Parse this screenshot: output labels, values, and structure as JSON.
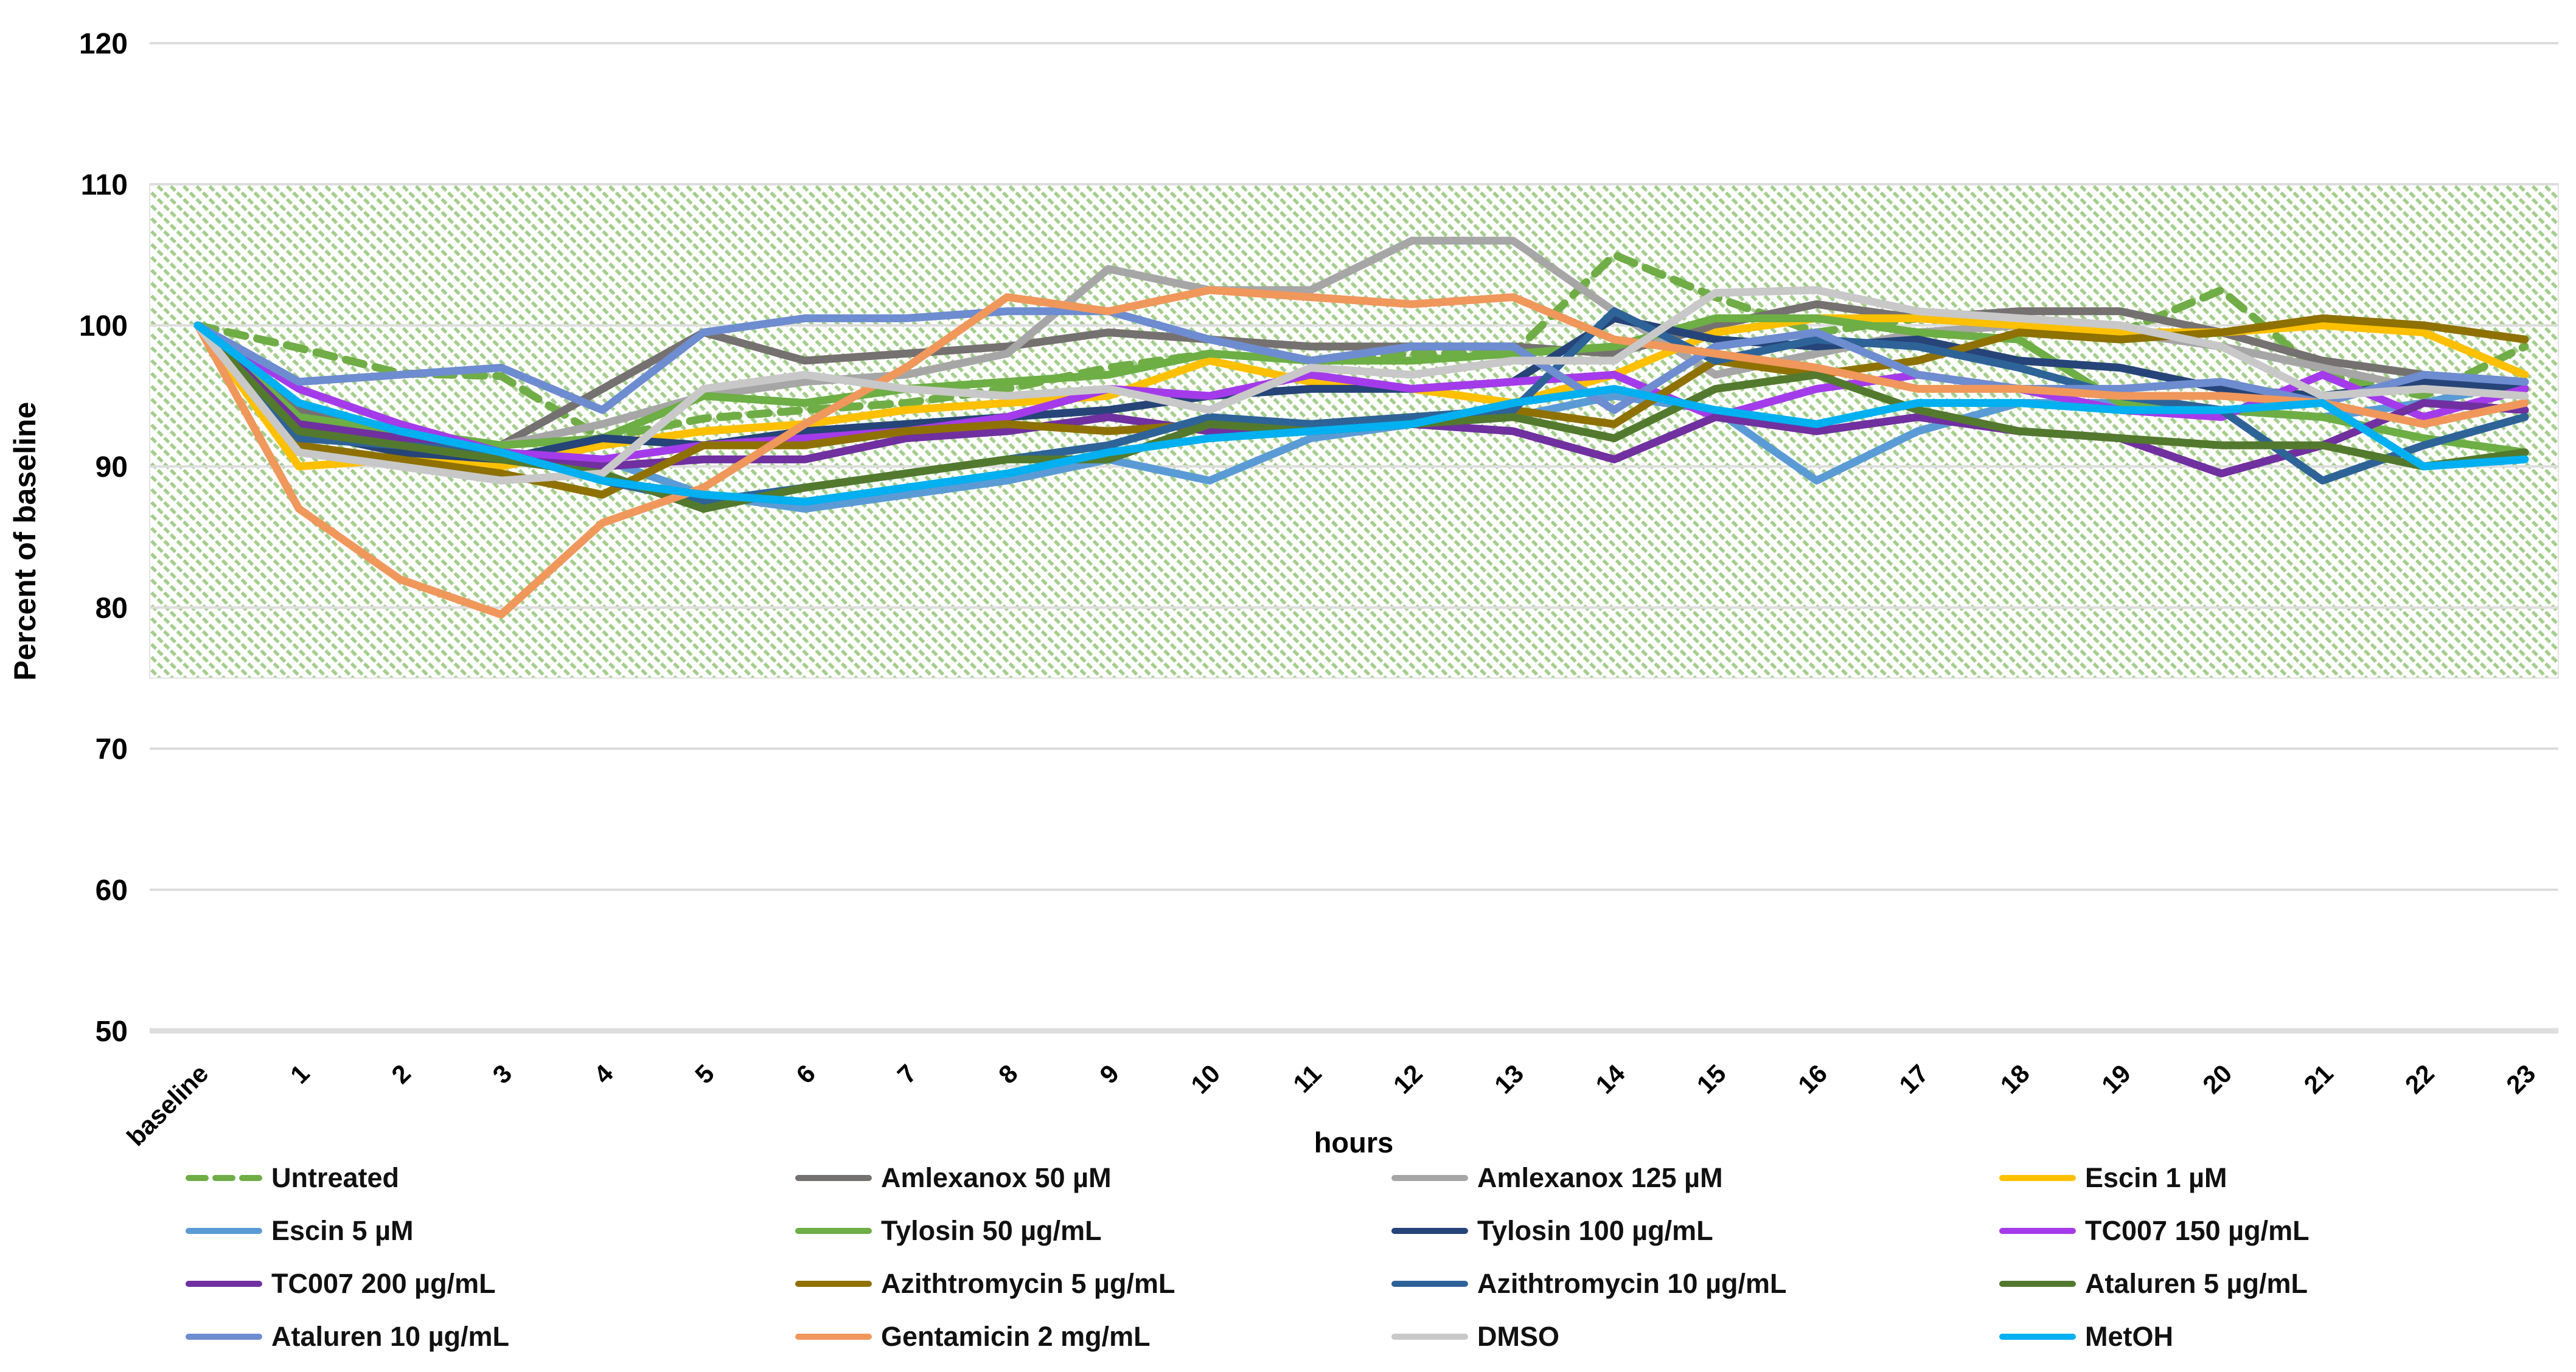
{
  "chart_data": {
    "type": "line",
    "title": "",
    "xlabel": "hours",
    "ylabel": "Percent of baseline",
    "ylim": [
      50,
      120
    ],
    "yticks": [
      120,
      110,
      100,
      90,
      80,
      70,
      60,
      50
    ],
    "grid": "horizontal",
    "legend_position": "bottom",
    "band": {
      "from": 75,
      "to": 110,
      "fill": "green-hatch",
      "hatch_color": "#94C478"
    },
    "categories": [
      "baseline",
      "1",
      "2",
      "3",
      "4",
      "5",
      "6",
      "7",
      "8",
      "9",
      "10",
      "11",
      "12",
      "13",
      "14",
      "15",
      "16",
      "17",
      "18",
      "19",
      "20",
      "21",
      "22",
      "23"
    ],
    "series": [
      {
        "name": "Untreated",
        "color": "#70AD47",
        "dash": true,
        "values": [
          100,
          98.4,
          96.6,
          96.4,
          92,
          93.4,
          94,
          94.5,
          95.5,
          97,
          98,
          97.5,
          98,
          98,
          105,
          102,
          99.5,
          100.5,
          100,
          99.5,
          102.5,
          96.5,
          95,
          98.5
        ]
      },
      {
        "name": "Amlexanox 50 µM",
        "color": "#767171",
        "dash": false,
        "values": [
          100,
          94,
          92,
          91.5,
          95.5,
          99.5,
          97.5,
          98,
          98.5,
          99.5,
          99,
          98.5,
          98.5,
          98.5,
          98,
          100,
          101.5,
          100.5,
          101,
          101,
          99.5,
          97.5,
          96.5,
          96
        ]
      },
      {
        "name": "Amlexanox 125 µM",
        "color": "#A6A6A6",
        "dash": false,
        "values": [
          100,
          92.5,
          91,
          91.5,
          93,
          95,
          96,
          96.5,
          98,
          104,
          102.5,
          102.5,
          106,
          106,
          101,
          96.5,
          98,
          99.5,
          100,
          99.5,
          98.5,
          97,
          95.5,
          95.5
        ]
      },
      {
        "name": "Escin 1 µM",
        "color": "#FFC000",
        "dash": false,
        "values": [
          100,
          90,
          90.5,
          90,
          91.5,
          92.5,
          93,
          94,
          94.5,
          95,
          97.5,
          96,
          95.5,
          94.5,
          96.5,
          99.5,
          100.5,
          100.5,
          100,
          99.5,
          99.5,
          100,
          99.5,
          96.5
        ]
      },
      {
        "name": "Escin 5 µM",
        "color": "#5B9BD5",
        "dash": false,
        "values": [
          100,
          93.5,
          92,
          91,
          90.5,
          88,
          87,
          88,
          89,
          90.5,
          89,
          92,
          93,
          93.5,
          95,
          94,
          89,
          92.5,
          94.5,
          94.5,
          94,
          93.5,
          94.5,
          96
        ]
      },
      {
        "name": "Tylosin 50 µg/mL",
        "color": "#6DAE45",
        "dash": false,
        "values": [
          100,
          93.5,
          92.5,
          91.5,
          92,
          95,
          94.5,
          95.5,
          96,
          96.5,
          98,
          97.5,
          97.5,
          98,
          98.5,
          100.5,
          100.5,
          99.5,
          99,
          94.5,
          94,
          93.5,
          92,
          91
        ]
      },
      {
        "name": "Tylosin 100 µg/mL",
        "color": "#264478",
        "dash": false,
        "values": [
          100,
          92.5,
          91,
          90.5,
          92,
          91.5,
          92.5,
          93,
          93.5,
          94,
          95,
          95.5,
          95.5,
          96,
          100.5,
          99,
          98.5,
          99,
          97.5,
          97,
          95.5,
          95,
          96,
          95.5
        ]
      },
      {
        "name": "TC007 150 µg/mL",
        "color": "#A43BEA",
        "dash": false,
        "values": [
          100,
          95.5,
          93,
          91,
          90.5,
          91.5,
          92,
          92.5,
          93.5,
          95.5,
          95,
          96.5,
          95.5,
          96,
          96.5,
          93.5,
          95.5,
          96.5,
          95.5,
          94,
          93.5,
          96.5,
          93.5,
          95.5
        ]
      },
      {
        "name": "TC007 200 µg/mL",
        "color": "#7030A0",
        "dash": false,
        "values": [
          100,
          93,
          92,
          90.5,
          90,
          90.5,
          90.5,
          92,
          92.5,
          93.5,
          92.5,
          93,
          93,
          92.5,
          90.5,
          93.5,
          92.5,
          93.5,
          92.5,
          92,
          89.5,
          91.5,
          94.5,
          94
        ]
      },
      {
        "name": "Azithtromycin 5 µg/mL",
        "color": "#8E7100",
        "dash": false,
        "values": [
          100,
          91.5,
          90.5,
          89.5,
          88,
          91.5,
          91.5,
          92.5,
          93,
          92.5,
          93,
          93,
          93.5,
          94,
          93,
          97.5,
          96.5,
          97.5,
          99.5,
          99,
          99.5,
          100.5,
          100,
          99
        ]
      },
      {
        "name": "Azithtromycin 10 µg/mL",
        "color": "#2E6398",
        "dash": false,
        "values": [
          100,
          92,
          91.5,
          91,
          89,
          87.5,
          88.5,
          89.5,
          90.5,
          91.5,
          93.5,
          93,
          93.5,
          94,
          101,
          97.5,
          99,
          98.5,
          97,
          95,
          94,
          89,
          91.5,
          93.5
        ]
      },
      {
        "name": "Ataluren 5 µg/mL",
        "color": "#53792E",
        "dash": false,
        "values": [
          100,
          92.5,
          91.5,
          90.5,
          89.5,
          87,
          88.5,
          89.5,
          90.5,
          90.5,
          93,
          92.5,
          93,
          93.5,
          92,
          95.5,
          96.5,
          94,
          92.5,
          92,
          91.5,
          91.5,
          90,
          91
        ]
      },
      {
        "name": "Ataluren 10 µg/mL",
        "color": "#6E8CD0",
        "dash": false,
        "values": [
          100,
          96,
          96.5,
          97,
          94,
          99.5,
          100.5,
          100.5,
          101,
          101,
          99,
          97.5,
          98.5,
          98.5,
          94,
          98.5,
          99.5,
          96.5,
          95.5,
          95.5,
          96,
          94.5,
          96.5,
          96
        ]
      },
      {
        "name": "Gentamicin 2 mg/mL",
        "color": "#F0975C",
        "dash": false,
        "values": [
          100,
          87,
          82,
          79.5,
          86,
          88.5,
          93,
          97,
          102,
          101,
          102.5,
          102,
          101.5,
          102,
          99,
          98,
          97,
          95.5,
          95.5,
          95,
          95,
          94.5,
          93,
          94.5
        ]
      },
      {
        "name": "DMSO",
        "color": "#C8C8C8",
        "dash": false,
        "values": [
          100,
          91,
          90,
          89,
          89.5,
          95.5,
          96.5,
          95.5,
          95,
          95.5,
          94,
          97,
          96.5,
          97.5,
          97.5,
          102.3,
          102.5,
          101,
          100.5,
          100,
          98.5,
          95,
          95.5,
          95
        ]
      },
      {
        "name": "MetOH",
        "color": "#00B0F0",
        "dash": false,
        "values": [
          100,
          94.5,
          92.5,
          91,
          89,
          88,
          87.5,
          88.5,
          89.5,
          91,
          92,
          92.5,
          93,
          94.5,
          95.5,
          94,
          93,
          94.5,
          94.5,
          94,
          94,
          94.5,
          90,
          90.5
        ]
      }
    ]
  }
}
